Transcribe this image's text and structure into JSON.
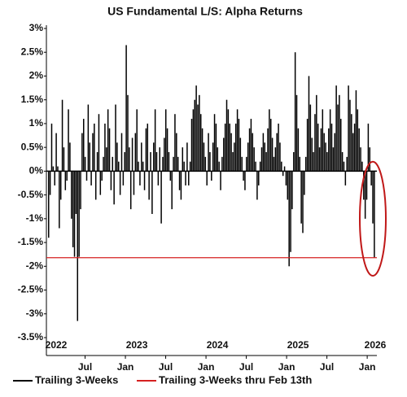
{
  "chart_data": {
    "type": "bar",
    "title": "US Fundamental L/S: Alpha Returns",
    "series": [
      {
        "name": "Trailing 3-Weeks",
        "color": "#000000",
        "values": [
          -1.4,
          -0.5,
          1.0,
          0.1,
          -0.3,
          0.8,
          0.1,
          -1.2,
          -0.6,
          1.5,
          0.5,
          -0.4,
          -0.2,
          1.3,
          0.6,
          -1.0,
          -1.6,
          -1.8,
          -0.9,
          -3.15,
          -1.8,
          -0.8,
          0.8,
          1.1,
          0.3,
          -0.2,
          1.4,
          0.6,
          -0.3,
          0.8,
          1.0,
          -0.6,
          0.4,
          1.2,
          -0.5,
          -0.2,
          0.3,
          1.0,
          0.5,
          1.3,
          0.9,
          -0.4,
          0.3,
          -0.7,
          1.4,
          0.6,
          0.2,
          -0.5,
          0.8,
          -0.3,
          0.4,
          2.65,
          1.6,
          0.5,
          -0.8,
          0.7,
          -0.5,
          0.8,
          1.3,
          0.2,
          -0.3,
          0.6,
          0.2,
          -0.4,
          0.9,
          1.0,
          -0.6,
          0.4,
          -0.9,
          0.6,
          1.3,
          0.4,
          -0.3,
          0.5,
          -1.1,
          0.3,
          0.7,
          1.3,
          0.9,
          0.4,
          -0.2,
          -0.8,
          0.3,
          1.2,
          0.8,
          0.3,
          -0.4,
          -0.6,
          0.5,
          0.2,
          -0.3,
          0.6,
          -0.3,
          0.2,
          1.1,
          1.3,
          1.5,
          1.8,
          1.4,
          1.6,
          1.2,
          0.9,
          0.6,
          0.3,
          -0.3,
          0.8,
          0.4,
          -0.2,
          0.6,
          1.2,
          1.0,
          0.5,
          0.2,
          -0.4,
          0.3,
          0.7,
          1.0,
          1.5,
          1.3,
          1.0,
          0.8,
          0.4,
          0.6,
          1.0,
          1.3,
          1.1,
          0.7,
          0.3,
          -0.2,
          -0.4,
          0.3,
          0.6,
          0.9,
          1.1,
          0.8,
          0.5,
          0.2,
          -0.6,
          -0.3,
          0.2,
          0.5,
          0.8,
          0.6,
          0.4,
          0.9,
          1.3,
          1.1,
          0.7,
          0.3,
          0.5,
          0.8,
          1.0,
          0.6,
          0.2,
          -0.1,
          0.1,
          -0.3,
          -0.6,
          -2.0,
          -1.7,
          -0.8,
          0.4,
          2.5,
          1.6,
          0.9,
          0.3,
          -1.1,
          -1.3,
          -0.5,
          0.3,
          1.1,
          2.0,
          1.4,
          0.7,
          0.4,
          1.2,
          1.6,
          1.0,
          0.5,
          0.9,
          1.3,
          0.8,
          0.6,
          0.4,
          0.9,
          1.3,
          1.0,
          0.5,
          0.8,
          1.8,
          1.4,
          1.6,
          1.1,
          0.4,
          0.2,
          -0.3,
          0.3,
          1.8,
          1.5,
          1.2,
          0.8,
          1.0,
          1.7,
          1.3,
          0.9,
          0.5,
          0.2,
          -0.6,
          -1.0,
          -0.6,
          1.0,
          0.5,
          -0.3,
          -1.1,
          -1.82
        ]
      },
      {
        "name": "Trailing 3-Weeks thru Feb 13th",
        "color": "#d62020",
        "reference_value": -1.82
      }
    ],
    "xlim": [
      2022.02,
      2026.12
    ],
    "xticks": [
      {
        "value": 2022.5,
        "label": "Jul"
      },
      {
        "value": 2023.0,
        "label": "Jan"
      },
      {
        "value": 2023.5,
        "label": "Jul"
      },
      {
        "value": 2024.0,
        "label": "Jan"
      },
      {
        "value": 2024.5,
        "label": "Jul"
      },
      {
        "value": 2025.0,
        "label": "Jan"
      },
      {
        "value": 2025.5,
        "label": "Jul"
      },
      {
        "value": 2026.0,
        "label": "Jan"
      }
    ],
    "year_labels": [
      {
        "value": 2022.0,
        "label": "2022"
      },
      {
        "value": 2023.0,
        "label": "2023"
      },
      {
        "value": 2024.0,
        "label": "2024"
      },
      {
        "value": 2025.0,
        "label": "2025"
      },
      {
        "value": 2026.0,
        "label": "2026"
      }
    ],
    "ylim": [
      -3.5,
      3
    ],
    "yticks": [
      {
        "value": 3,
        "label": "3%"
      },
      {
        "value": 2.5,
        "label": "2.5%"
      },
      {
        "value": 2,
        "label": "2%"
      },
      {
        "value": 1.5,
        "label": "1.5%"
      },
      {
        "value": 1,
        "label": "1%"
      },
      {
        "value": 0.5,
        "label": "0.5%"
      },
      {
        "value": 0,
        "label": "0%"
      },
      {
        "value": -0.5,
        "label": "-0.5%"
      },
      {
        "value": -1,
        "label": "-1%"
      },
      {
        "value": -1.5,
        "label": "-1.5%"
      },
      {
        "value": -2,
        "label": "-2%"
      },
      {
        "value": -2.5,
        "label": "-2.5%"
      },
      {
        "value": -3,
        "label": "-3%"
      },
      {
        "value": -3.5,
        "label": "-3.5%"
      }
    ],
    "legend": "bottom"
  }
}
